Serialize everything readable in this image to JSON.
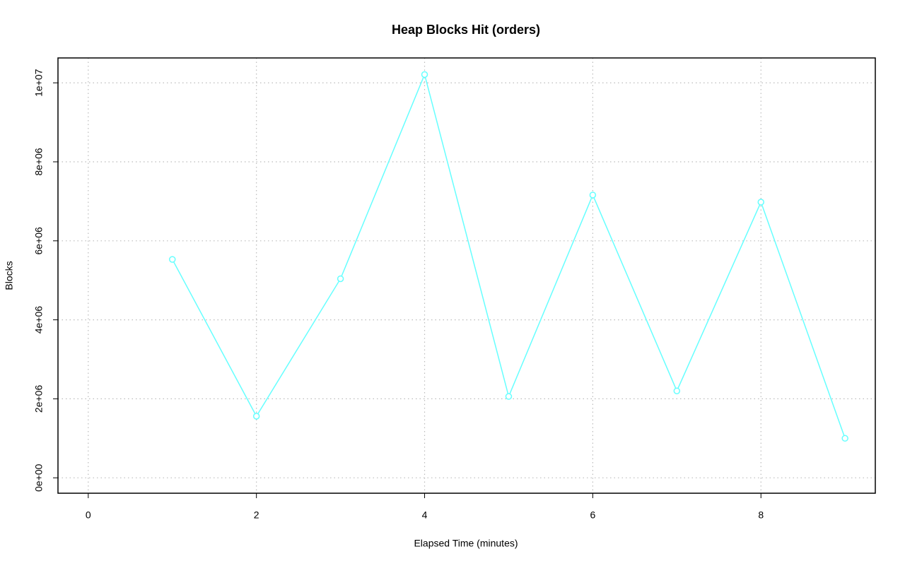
{
  "chart_data": {
    "type": "line",
    "title": "Heap Blocks Hit (orders)",
    "x_label": "Elapsed Time (minutes)",
    "y_label": "Blocks",
    "x": [
      1,
      2,
      3,
      4,
      5,
      6,
      7,
      8,
      9
    ],
    "values": [
      5530000,
      1560000,
      5040000,
      10210000,
      2060000,
      7160000,
      2200000,
      6980000,
      1000000
    ],
    "color": "#66ffff",
    "xlim": [
      -0.36,
      9.36
    ],
    "xticks": [
      0,
      2,
      4,
      6,
      8
    ],
    "ylim": [
      -390000,
      10630000
    ],
    "yticks": [
      {
        "value": 0,
        "label": "0e+00"
      },
      {
        "value": 2000000,
        "label": "2e+06"
      },
      {
        "value": 4000000,
        "label": "4e+06"
      },
      {
        "value": 6000000,
        "label": "6e+06"
      },
      {
        "value": 8000000,
        "label": "8e+06"
      },
      {
        "value": 10000000,
        "label": "1e+07"
      }
    ],
    "grid": true
  }
}
